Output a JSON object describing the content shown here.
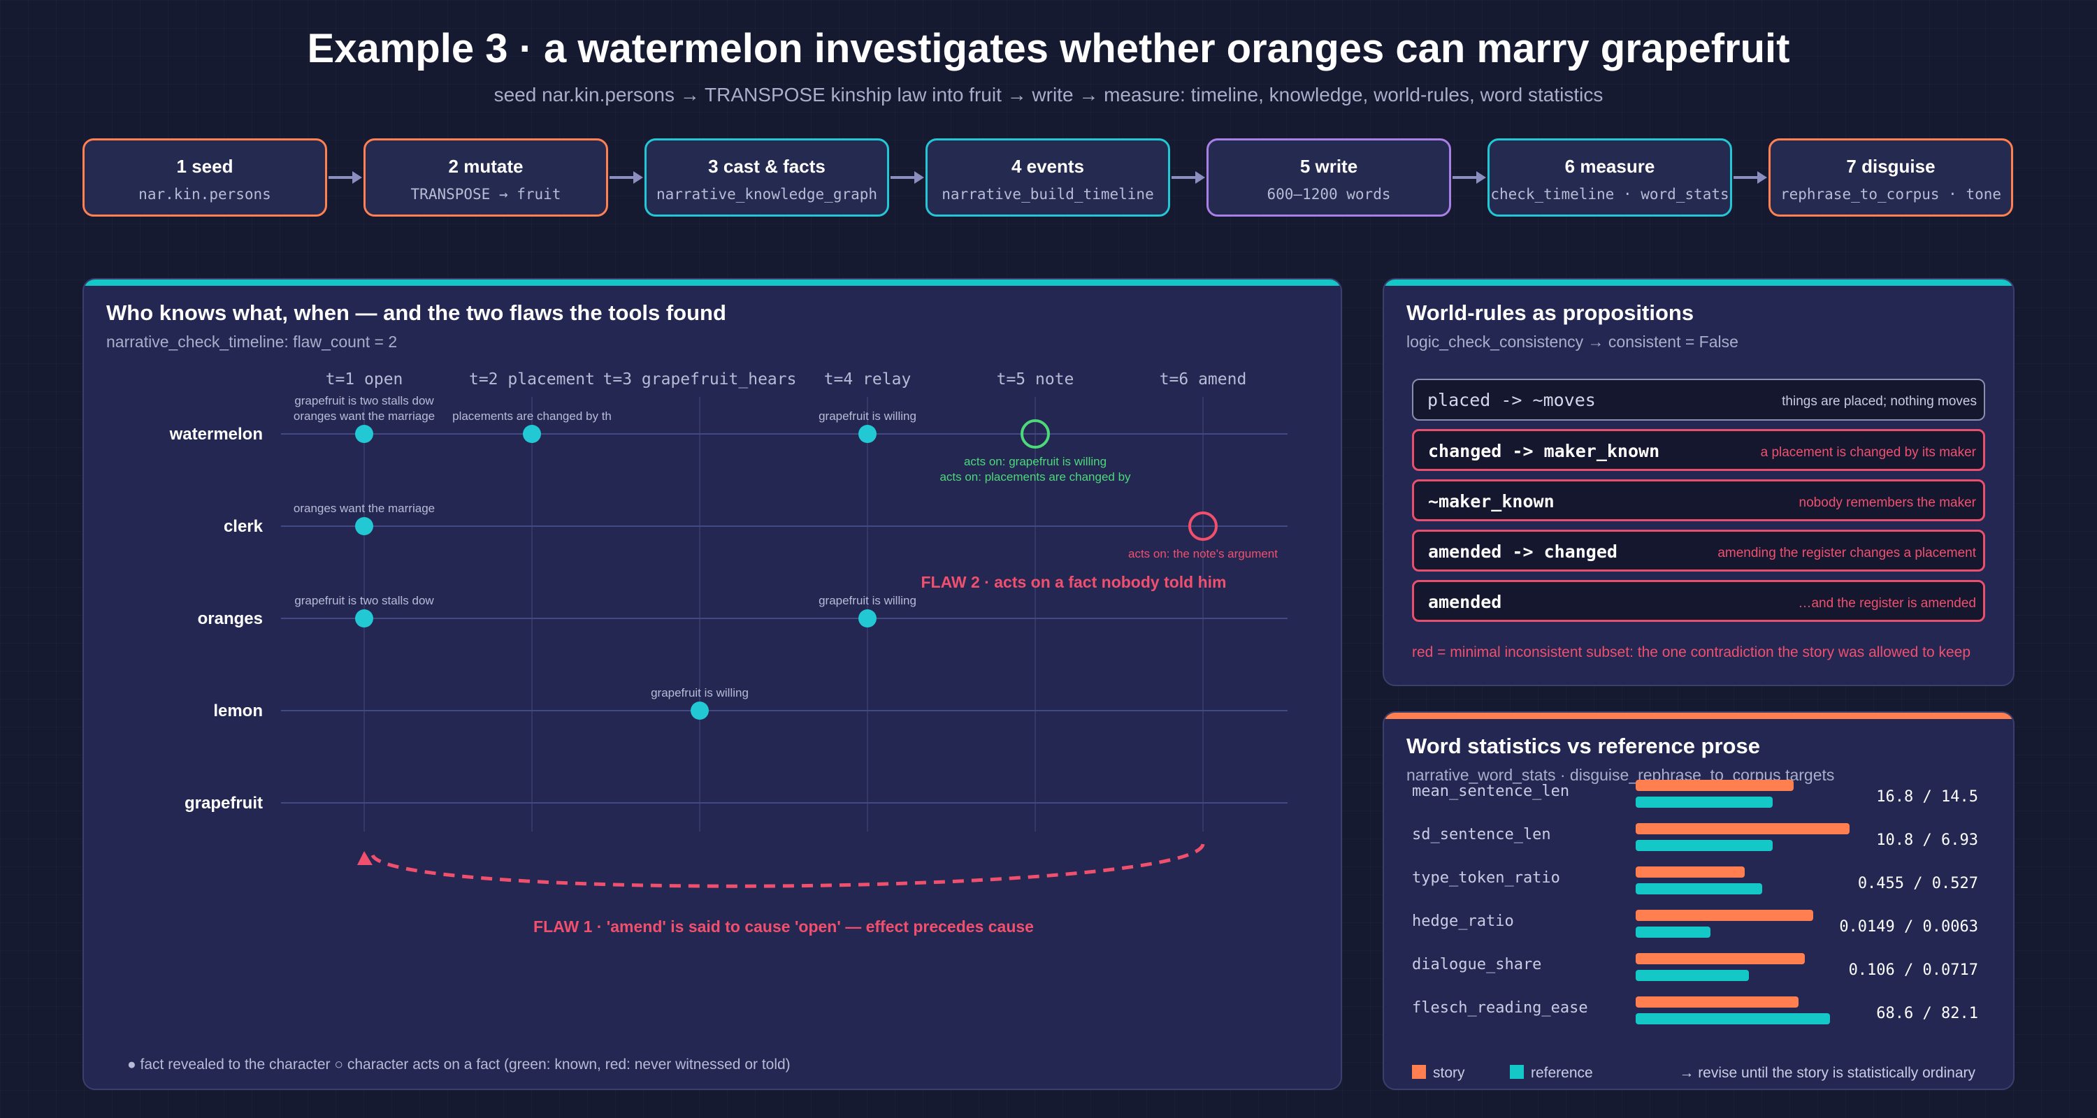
{
  "title": "Example 3 · a watermelon investigates whether oranges can marry grapefruit",
  "subtitle": "seed nar.kin.persons → TRANSPOSE kinship law into fruit → write → measure: timeline, knowledge, world-rules, word statistics",
  "colors": {
    "seed": "#ff8050",
    "tool": "#22c8d4",
    "write": "#a97fe8",
    "flaw": "#f0506e",
    "known": "#4dd87a",
    "story": "#ff7f50",
    "reference": "#14c8c8"
  },
  "pipeline": [
    {
      "title": "1 seed",
      "sub": "nar.kin.persons",
      "kind": "seed"
    },
    {
      "title": "2 mutate",
      "sub": "TRANSPOSE → fruit",
      "kind": "seed"
    },
    {
      "title": "3 cast & facts",
      "sub": "narrative_knowledge_graph",
      "kind": "tool"
    },
    {
      "title": "4 events",
      "sub": "narrative_build_timeline",
      "kind": "tool"
    },
    {
      "title": "5 write",
      "sub": "600–1200 words",
      "kind": "write"
    },
    {
      "title": "6 measure",
      "sub": "check_timeline · word_stats",
      "kind": "tool"
    },
    {
      "title": "7 disguise",
      "sub": "rephrase_to_corpus · tone",
      "kind": "seed"
    }
  ],
  "timeline": {
    "title": "Who knows what, when — and the two flaws the tools found",
    "subtitle": "narrative_check_timeline: flaw_count = 2",
    "times": [
      "t=1 open",
      "t=2 placement",
      "t=3 grapefruit_hears",
      "t=4 relay",
      "t=5 note",
      "t=6 amend"
    ],
    "characters": [
      "watermelon",
      "clerk",
      "oranges",
      "lemon",
      "grapefruit"
    ],
    "reveals": [
      {
        "char": 0,
        "t": 0,
        "labels": [
          "grapefruit is two stalls dow",
          "oranges want the marriage"
        ]
      },
      {
        "char": 0,
        "t": 1,
        "labels": [
          "placements are changed by th"
        ]
      },
      {
        "char": 0,
        "t": 3,
        "labels": [
          "grapefruit is willing"
        ]
      },
      {
        "char": 1,
        "t": 0,
        "labels": [
          "oranges want the marriage"
        ]
      },
      {
        "char": 2,
        "t": 0,
        "labels": [
          "grapefruit is two stalls dow"
        ]
      },
      {
        "char": 2,
        "t": 3,
        "labels": [
          "grapefruit is willing"
        ]
      },
      {
        "char": 3,
        "t": 2,
        "labels": [
          "grapefruit is willing"
        ]
      }
    ],
    "acts": [
      {
        "char": 0,
        "t": 4,
        "status": "known",
        "labels": [
          "acts on: grapefruit is willing",
          "acts on: placements are changed by"
        ]
      },
      {
        "char": 1,
        "t": 5,
        "status": "flaw",
        "labels": [
          "acts on: the note's argument"
        ]
      }
    ],
    "flaw2": "FLAW 2 · acts on a fact nobody told him",
    "flaw1": "FLAW 1 · 'amend' is said to cause 'open' — effect precedes cause",
    "flaw1_from": 5,
    "flaw1_to": 0,
    "legend": "● fact revealed to the character ○ character acts on a fact (green: known, red: never witnessed or told)"
  },
  "world_rules": {
    "title": "World-rules as propositions",
    "subtitle": "logic_check_consistency → consistent = False",
    "props": [
      {
        "formula": "placed -> ~moves",
        "desc": "things are placed; nothing moves",
        "inconsistent": false
      },
      {
        "formula": "changed -> maker_known",
        "desc": "a placement is changed by its maker",
        "inconsistent": true
      },
      {
        "formula": "~maker_known",
        "desc": "nobody remembers the maker",
        "inconsistent": true
      },
      {
        "formula": "amended -> changed",
        "desc": "amending the register changes a placement",
        "inconsistent": true
      },
      {
        "formula": "amended",
        "desc": "…and the register is amended",
        "inconsistent": true
      }
    ],
    "note": "red = minimal inconsistent subset: the one contradiction the story was allowed to keep"
  },
  "word_stats": {
    "title": "Word statistics vs reference prose",
    "subtitle": "narrative_word_stats · disguise_rephrase_to_corpus targets",
    "rows": [
      {
        "name": "mean_sentence_len",
        "story_frac": 0.74,
        "ref_frac": 0.64,
        "value": "16.8 / 14.5"
      },
      {
        "name": "sd_sentence_len",
        "story_frac": 1.0,
        "ref_frac": 0.64,
        "value": "10.8 / 6.93"
      },
      {
        "name": "type_token_ratio",
        "story_frac": 0.51,
        "ref_frac": 0.59,
        "value": "0.455 / 0.527"
      },
      {
        "name": "hedge_ratio",
        "story_frac": 0.83,
        "ref_frac": 0.35,
        "value": "0.0149 / 0.0063"
      },
      {
        "name": "dialogue_share",
        "story_frac": 0.79,
        "ref_frac": 0.53,
        "value": "0.106 / 0.0717"
      },
      {
        "name": "flesch_reading_ease",
        "story_frac": 0.76,
        "ref_frac": 0.91,
        "value": "68.6 / 82.1"
      }
    ],
    "legend_story": "story",
    "legend_reference": "reference",
    "legend_note": "→ revise until the story is statistically ordinary"
  }
}
